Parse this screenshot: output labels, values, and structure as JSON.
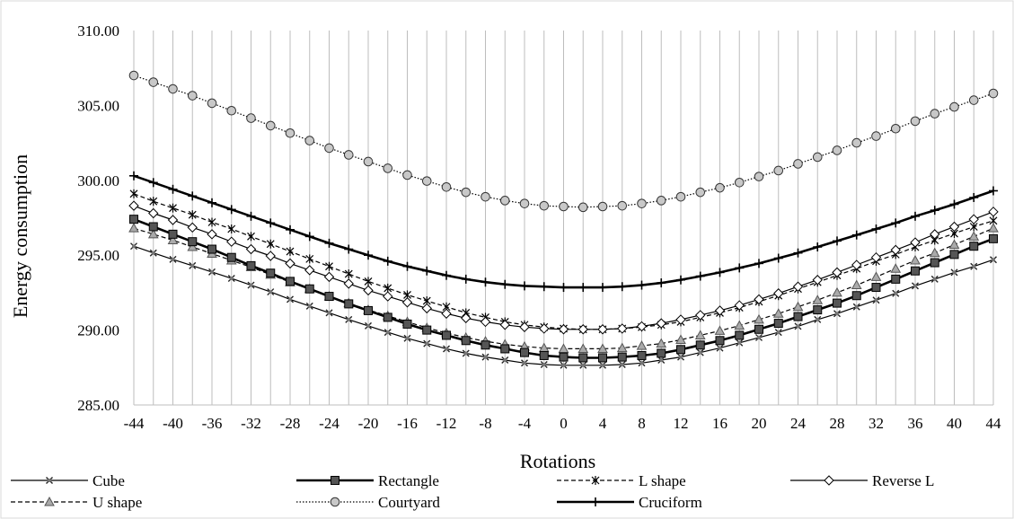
{
  "chart_data": {
    "type": "line",
    "title": "",
    "xlabel": "Rotations",
    "ylabel": "Energy consumption",
    "ylim": [
      285,
      310
    ],
    "yticks": [
      "285.00",
      "290.00",
      "295.00",
      "300.00",
      "305.00",
      "310.00"
    ],
    "x": [
      -44,
      -42,
      -40,
      -38,
      -36,
      -34,
      -32,
      -30,
      -28,
      -26,
      -24,
      -22,
      -20,
      -18,
      -16,
      -14,
      -12,
      -10,
      -8,
      -6,
      -4,
      -2,
      0,
      2,
      4,
      6,
      8,
      10,
      12,
      14,
      16,
      18,
      20,
      22,
      24,
      26,
      28,
      30,
      32,
      34,
      36,
      38,
      40,
      42,
      44
    ],
    "xticks": [
      -44,
      -40,
      -36,
      -32,
      -28,
      -24,
      -20,
      -16,
      -12,
      -8,
      -4,
      0,
      4,
      8,
      12,
      16,
      20,
      24,
      28,
      32,
      36,
      40,
      44
    ],
    "grid": "vertical",
    "legend_position": "bottom",
    "series": [
      {
        "name": "Cube",
        "color": "#000000",
        "marker": "asterisk-x",
        "line": "solid-thin",
        "values": [
          295.6,
          295.15,
          294.72,
          294.3,
          293.88,
          293.45,
          293.0,
          292.55,
          292.05,
          291.6,
          291.15,
          290.7,
          290.28,
          289.85,
          289.45,
          289.1,
          288.75,
          288.45,
          288.2,
          288.0,
          287.8,
          287.7,
          287.65,
          287.65,
          287.65,
          287.7,
          287.8,
          288.0,
          288.2,
          288.5,
          288.8,
          289.15,
          289.5,
          289.85,
          290.25,
          290.7,
          291.1,
          291.55,
          292.0,
          292.45,
          292.95,
          293.4,
          293.85,
          294.25,
          294.7
        ]
      },
      {
        "name": "Rectangle",
        "color": "#000000",
        "marker": "square",
        "line": "solid-thick",
        "values": [
          297.4,
          296.9,
          296.4,
          295.9,
          295.4,
          294.85,
          294.3,
          293.8,
          293.25,
          292.75,
          292.25,
          291.75,
          291.3,
          290.85,
          290.4,
          290.0,
          289.65,
          289.3,
          289.0,
          288.75,
          288.5,
          288.3,
          288.2,
          288.15,
          288.15,
          288.2,
          288.3,
          288.45,
          288.7,
          289.0,
          289.3,
          289.65,
          290.05,
          290.45,
          290.9,
          291.35,
          291.8,
          292.3,
          292.85,
          293.4,
          293.95,
          294.5,
          295.05,
          295.6,
          296.1
        ]
      },
      {
        "name": "L shape",
        "color": "#000000",
        "marker": "asterisk",
        "line": "dashed",
        "values": [
          299.1,
          298.6,
          298.15,
          297.7,
          297.2,
          296.75,
          296.25,
          295.75,
          295.25,
          294.75,
          294.25,
          293.75,
          293.25,
          292.8,
          292.35,
          291.95,
          291.55,
          291.15,
          290.85,
          290.55,
          290.35,
          290.2,
          290.1,
          290.05,
          290.05,
          290.1,
          290.2,
          290.35,
          290.55,
          290.85,
          291.15,
          291.5,
          291.9,
          292.3,
          292.75,
          293.2,
          293.65,
          294.1,
          294.6,
          295.05,
          295.55,
          296.0,
          296.45,
          296.9,
          297.3
        ]
      },
      {
        "name": "Reverse L",
        "color": "#000000",
        "marker": "diamond",
        "line": "solid-thin",
        "values": [
          298.3,
          297.8,
          297.35,
          296.85,
          296.4,
          295.9,
          295.4,
          294.95,
          294.45,
          294.0,
          293.55,
          293.1,
          292.65,
          292.25,
          291.85,
          291.45,
          291.1,
          290.8,
          290.55,
          290.35,
          290.2,
          290.1,
          290.05,
          290.05,
          290.05,
          290.1,
          290.25,
          290.45,
          290.7,
          291.0,
          291.3,
          291.65,
          292.05,
          292.45,
          292.9,
          293.35,
          293.85,
          294.35,
          294.85,
          295.35,
          295.85,
          296.4,
          296.9,
          297.4,
          297.9
        ]
      },
      {
        "name": "U shape",
        "color": "#000000",
        "marker": "triangle",
        "line": "dashed",
        "values": [
          296.8,
          296.4,
          296.0,
          295.55,
          295.1,
          294.65,
          294.2,
          293.7,
          293.2,
          292.75,
          292.25,
          291.8,
          291.35,
          290.95,
          290.55,
          290.15,
          289.8,
          289.5,
          289.25,
          289.05,
          288.9,
          288.8,
          288.75,
          288.75,
          288.75,
          288.8,
          288.95,
          289.1,
          289.35,
          289.65,
          289.95,
          290.3,
          290.7,
          291.1,
          291.55,
          292.0,
          292.5,
          293.0,
          293.55,
          294.1,
          294.65,
          295.15,
          295.7,
          296.25,
          296.8
        ]
      },
      {
        "name": "Courtyard",
        "color": "#000000",
        "marker": "circle",
        "line": "dotted",
        "values": [
          307.0,
          306.55,
          306.1,
          305.65,
          305.15,
          304.65,
          304.15,
          303.65,
          303.15,
          302.65,
          302.15,
          301.7,
          301.25,
          300.8,
          300.35,
          299.95,
          299.55,
          299.2,
          298.9,
          298.65,
          298.45,
          298.3,
          298.25,
          298.2,
          298.25,
          298.3,
          298.45,
          298.65,
          298.9,
          299.2,
          299.5,
          299.85,
          300.25,
          300.65,
          301.1,
          301.55,
          302.0,
          302.5,
          302.95,
          303.45,
          303.95,
          304.45,
          304.9,
          305.35,
          305.8
        ]
      },
      {
        "name": "Cruciform",
        "color": "#000000",
        "marker": "plus",
        "line": "solid-thick",
        "values": [
          300.3,
          299.85,
          299.4,
          298.95,
          298.5,
          298.05,
          297.6,
          297.15,
          296.7,
          296.25,
          295.8,
          295.4,
          295.0,
          294.6,
          294.25,
          293.95,
          293.65,
          293.4,
          293.2,
          293.05,
          292.95,
          292.9,
          292.85,
          292.85,
          292.85,
          292.9,
          293.0,
          293.15,
          293.35,
          293.6,
          293.85,
          294.15,
          294.45,
          294.8,
          295.15,
          295.55,
          295.95,
          296.35,
          296.75,
          297.15,
          297.6,
          298.0,
          298.4,
          298.85,
          299.3
        ]
      }
    ]
  }
}
